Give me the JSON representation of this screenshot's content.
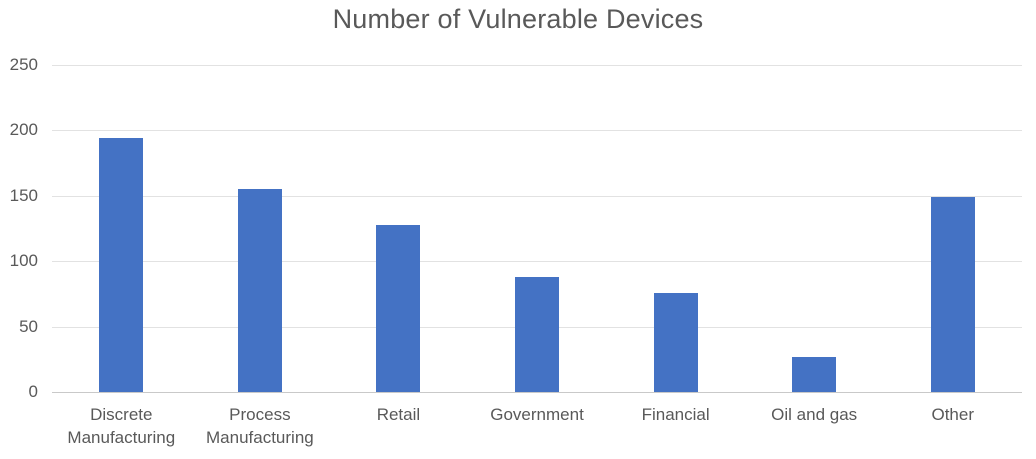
{
  "chart_data": {
    "type": "bar",
    "title": "Number of Vulnerable Devices",
    "categories": [
      "Discrete Manufacturing",
      "Process Manufacturing",
      "Retail",
      "Government",
      "Financial",
      "Oil and gas",
      "Other"
    ],
    "values": [
      194,
      155,
      128,
      88,
      76,
      27,
      149
    ],
    "xlabel": "",
    "ylabel": "",
    "ylim": [
      0,
      250
    ],
    "yticks": [
      0,
      50,
      100,
      150,
      200,
      250
    ],
    "grid": true,
    "legend": false,
    "bar_color": "#4472C4",
    "gridline_color": "#E2E2E2",
    "axis_line_color": "#C9C9C9",
    "text_color": "#595959"
  }
}
